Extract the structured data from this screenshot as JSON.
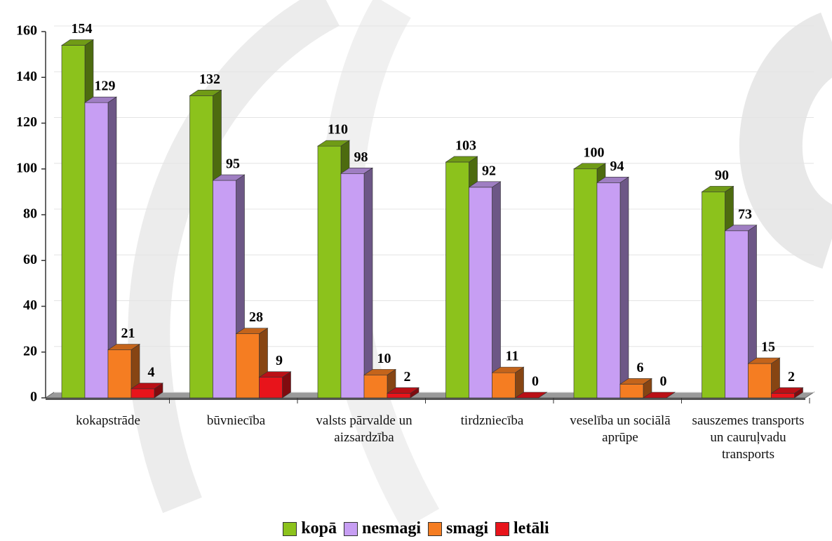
{
  "chart_data": {
    "type": "bar3d",
    "categories": [
      "kokapstrāde",
      "būvniecība",
      "valsts pārvalde un aizsardzība",
      "tirdzniecība",
      "veselība un sociālā aprūpe",
      "sauszemes transports un cauruļvadu transports"
    ],
    "series": [
      {
        "name": "kopā",
        "color": "#8cc21c",
        "values": [
          154,
          132,
          110,
          103,
          100,
          90
        ]
      },
      {
        "name": "nesmagi",
        "color": "#c79ef3",
        "values": [
          129,
          95,
          98,
          92,
          94,
          73
        ]
      },
      {
        "name": "smagi",
        "color": "#f57d22",
        "values": [
          21,
          28,
          10,
          11,
          6,
          15
        ]
      },
      {
        "name": "letāli",
        "color": "#e8141b",
        "values": [
          4,
          9,
          2,
          0,
          0,
          2
        ]
      }
    ],
    "ylim": [
      0,
      160
    ],
    "yticks": [
      0,
      20,
      40,
      60,
      80,
      100,
      120,
      140,
      160
    ],
    "legend": "bottom"
  }
}
